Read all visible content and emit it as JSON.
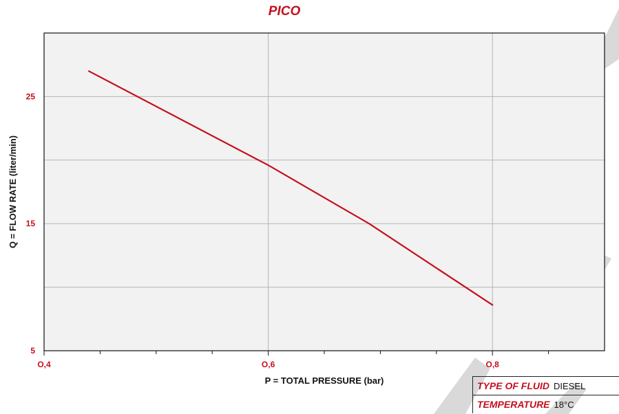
{
  "colors": {
    "accent": "#c4101d",
    "line": "#c4101d",
    "plot_background": "#f2f2f2",
    "grid": "#b5b5b5",
    "watermark": "#d5d5d5",
    "text": "#111111"
  },
  "chart_data": {
    "type": "line",
    "title": "PICO",
    "xlabel": "P = TOTAL PRESSURE (bar)",
    "ylabel": "Q = FLOW RATE (liter/min)",
    "xlim": [
      0.4,
      0.9
    ],
    "ylim": [
      5,
      30
    ],
    "x_ticks": [
      {
        "value": 0.4,
        "label": "O,4"
      },
      {
        "value": 0.6,
        "label": "O,6"
      },
      {
        "value": 0.8,
        "label": "O,8"
      }
    ],
    "x_minor_ticks": [
      0.45,
      0.5,
      0.55,
      0.65,
      0.7,
      0.75,
      0.85
    ],
    "y_ticks": [
      {
        "value": 5,
        "label": "5"
      },
      {
        "value": 15,
        "label": "15"
      },
      {
        "value": 25,
        "label": "25"
      }
    ],
    "x_gridlines": [
      0.6,
      0.8
    ],
    "y_gridlines": [
      10,
      15,
      20,
      25
    ],
    "grid": true,
    "series": [
      {
        "x": [
          0.44,
          0.6,
          0.69,
          0.8
        ],
        "y": [
          27.0,
          19.6,
          15.0,
          8.6
        ]
      }
    ]
  },
  "info_table": [
    {
      "label": "TYPE OF FLUID",
      "value": "DIESEL"
    },
    {
      "label": "TEMPERATURE",
      "value": "18°C"
    }
  ]
}
